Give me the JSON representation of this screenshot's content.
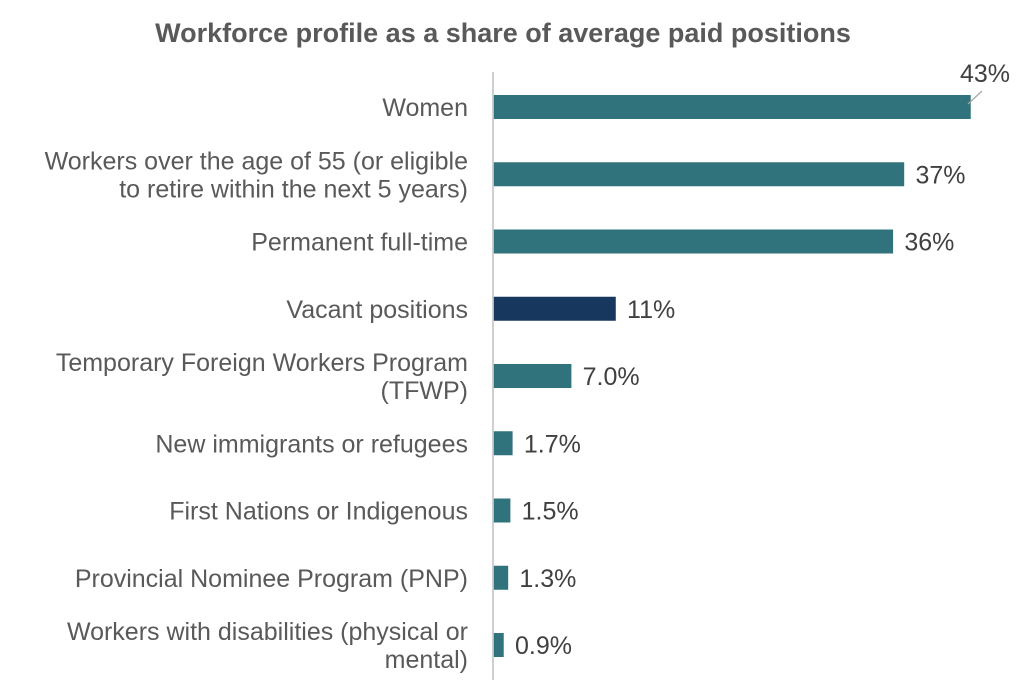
{
  "chart_data": {
    "type": "bar",
    "orientation": "horizontal",
    "title": "Workforce profile as a share of average paid positions",
    "categories": [
      [
        "Women"
      ],
      [
        "Workers over the age of 55 (or eligible",
        "to retire within the next 5 years)"
      ],
      [
        "Permanent full-time"
      ],
      [
        "Vacant positions"
      ],
      [
        "Temporary Foreign Workers Program",
        "(TFWP)"
      ],
      [
        "New immigrants or refugees"
      ],
      [
        "First Nations or Indigenous"
      ],
      [
        "Provincial Nominee Program (PNP)"
      ],
      [
        "Workers with disabilities (physical or",
        "mental)"
      ]
    ],
    "values": [
      43,
      37,
      36,
      11,
      7.0,
      1.7,
      1.5,
      1.3,
      0.9
    ],
    "value_labels": [
      "43%",
      "37%",
      "36%",
      "11%",
      "7.0%",
      "1.7%",
      "1.5%",
      "1.3%",
      "0.9%"
    ],
    "unit": "%",
    "xlim": [
      0,
      43
    ],
    "grid": false,
    "legend": "none",
    "colors": {
      "default_bar": "#31737D",
      "highlight_bar": "#17375E",
      "axis": "#BFBFBF",
      "leader_line": "#A6A6A6"
    },
    "highlight_index": 3
  }
}
